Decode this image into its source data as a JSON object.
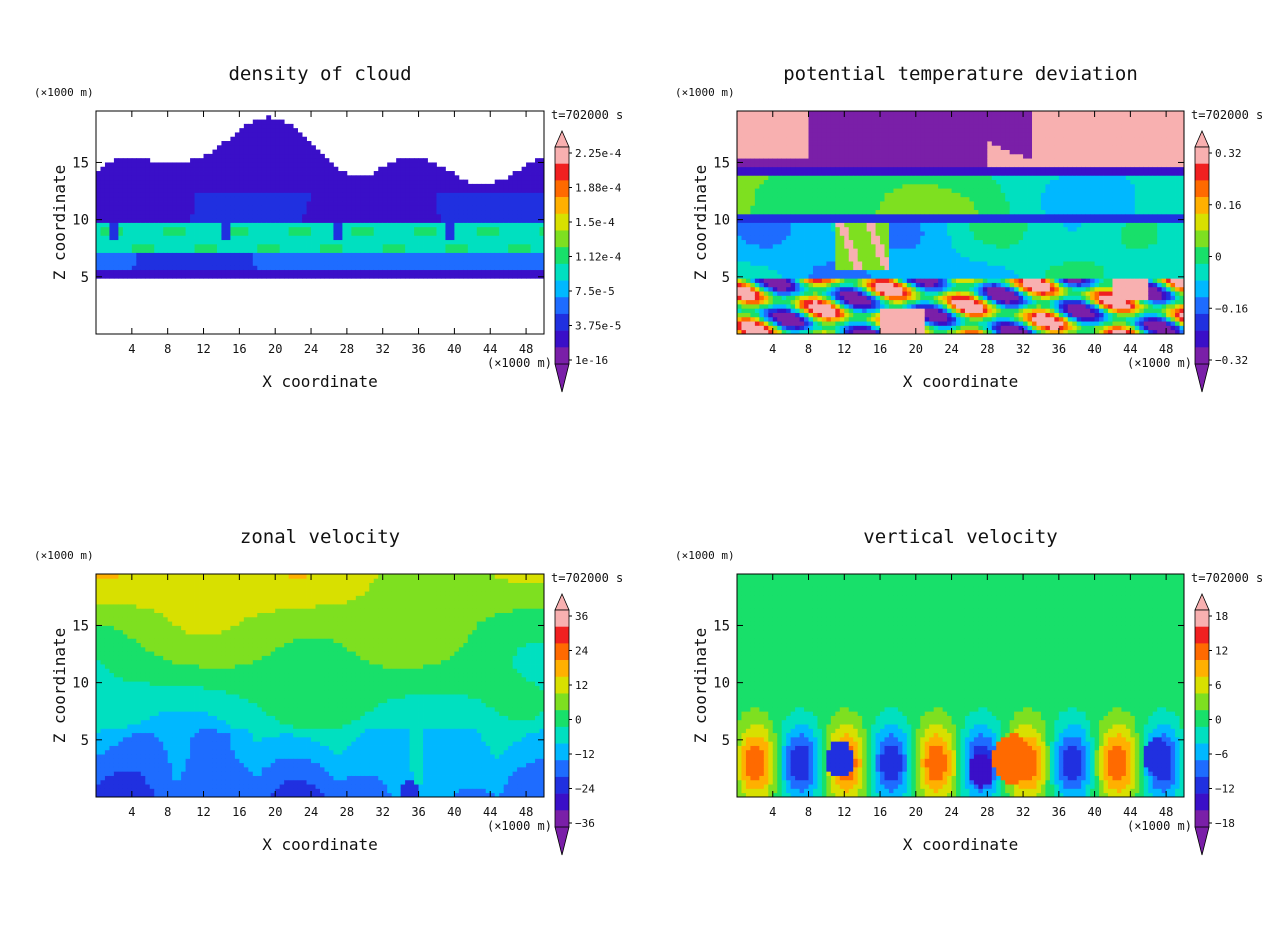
{
  "chart_data": [
    {
      "type": "heatmap",
      "title": "density of cloud",
      "xlabel": "X coordinate",
      "ylabel": "Z coordinate",
      "x_unit": "(×1000 m)",
      "y_unit": "(×1000 m)",
      "time_label": "t=702000 s",
      "xlim": [
        0,
        50
      ],
      "ylim": [
        0,
        19.5
      ],
      "x_ticks": [
        "4",
        "8",
        "12",
        "16",
        "20",
        "24",
        "28",
        "32",
        "36",
        "40",
        "44",
        "48"
      ],
      "y_ticks": [
        "5",
        "10",
        "15"
      ],
      "colorbar_labels": [
        "2.25e-4",
        "1.88e-4",
        "1.5e-4",
        "1.12e-4",
        "7.5e-5",
        "3.75e-5",
        "1e-16"
      ],
      "colors": {
        "palette": [
          "#7a1fa8",
          "#3a0fc8",
          "#2030e0",
          "#1e6cff",
          "#00b8ff",
          "#00e0c0",
          "#18e06a",
          "#7ee020",
          "#d8e000",
          "#ffb000",
          "#ff6a00",
          "#f02020",
          "#f8b0b0"
        ]
      }
    },
    {
      "type": "heatmap",
      "title": "potential temperature deviation",
      "xlabel": "X coordinate",
      "ylabel": "Z coordinate",
      "x_unit": "(×1000 m)",
      "y_unit": "(×1000 m)",
      "time_label": "t=702000 s",
      "xlim": [
        0,
        50
      ],
      "ylim": [
        0,
        19.5
      ],
      "x_ticks": [
        "4",
        "8",
        "12",
        "16",
        "20",
        "24",
        "28",
        "32",
        "36",
        "40",
        "44",
        "48"
      ],
      "y_ticks": [
        "5",
        "10",
        "15"
      ],
      "colorbar_labels": [
        "0.32",
        "0.16",
        "0",
        "−0.16",
        "−0.32"
      ]
    },
    {
      "type": "heatmap",
      "title": "zonal velocity",
      "xlabel": "X coordinate",
      "ylabel": "Z coordinate",
      "x_unit": "(×1000 m)",
      "y_unit": "(×1000 m)",
      "time_label": "t=702000 s",
      "xlim": [
        0,
        50
      ],
      "ylim": [
        0,
        19.5
      ],
      "x_ticks": [
        "4",
        "8",
        "12",
        "16",
        "20",
        "24",
        "28",
        "32",
        "36",
        "40",
        "44",
        "48"
      ],
      "y_ticks": [
        "5",
        "10",
        "15"
      ],
      "colorbar_labels": [
        "36",
        "24",
        "12",
        "0",
        "−12",
        "−24",
        "−36"
      ]
    },
    {
      "type": "heatmap",
      "title": "vertical velocity",
      "xlabel": "X coordinate",
      "ylabel": "Z coordinate",
      "x_unit": "(×1000 m)",
      "y_unit": "(×1000 m)",
      "time_label": "t=702000 s",
      "xlim": [
        0,
        50
      ],
      "ylim": [
        0,
        19.5
      ],
      "x_ticks": [
        "4",
        "8",
        "12",
        "16",
        "20",
        "24",
        "28",
        "32",
        "36",
        "40",
        "44",
        "48"
      ],
      "y_ticks": [
        "5",
        "10",
        "15"
      ],
      "colorbar_labels": [
        "18",
        "12",
        "6",
        "0",
        "−6",
        "−12",
        "−18"
      ]
    }
  ]
}
